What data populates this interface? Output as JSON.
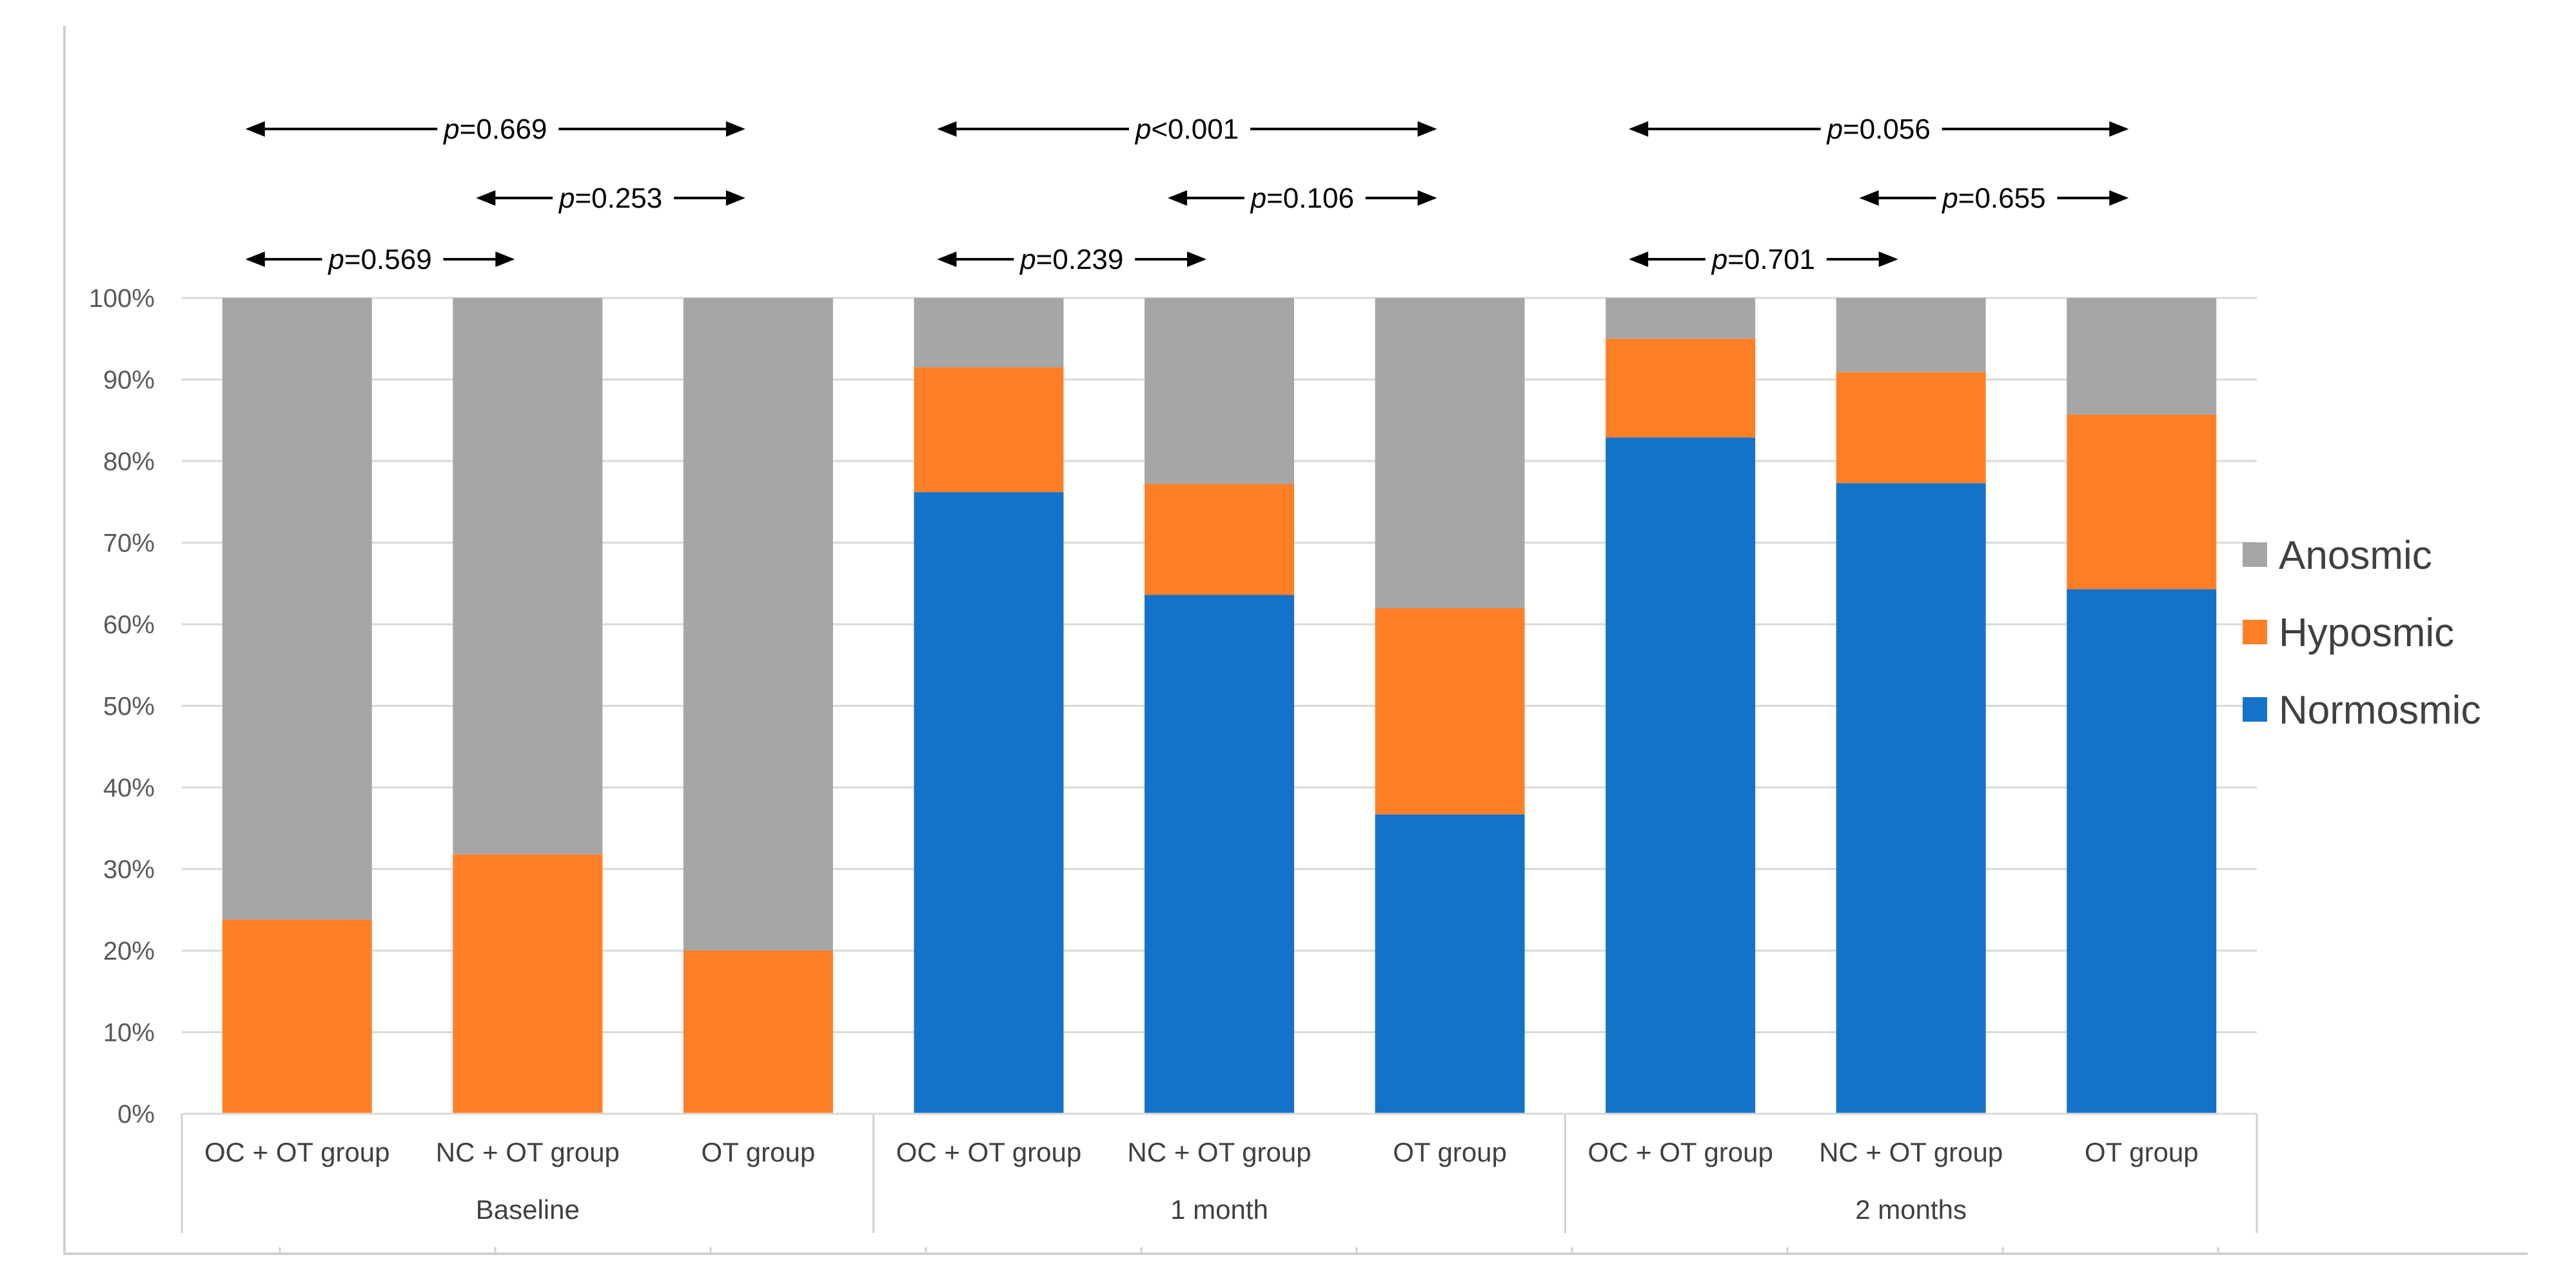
{
  "chart_data": {
    "type": "bar",
    "stacked": true,
    "percent": true,
    "ylim": [
      0,
      100
    ],
    "yticks": [
      "0%",
      "10%",
      "20%",
      "30%",
      "40%",
      "50%",
      "60%",
      "70%",
      "80%",
      "90%",
      "100%"
    ],
    "time_groups": [
      "Baseline",
      "1 month",
      "2 months"
    ],
    "categories": [
      "OC + OT group",
      "NC + OT group",
      "OT group",
      "OC + OT group",
      "NC + OT group",
      "OT group",
      "OC + OT group",
      "NC + OT group",
      "OT group"
    ],
    "series": [
      {
        "name": "Normosmic",
        "color": "#1572C9",
        "values": [
          0,
          0,
          0,
          76.2,
          63.6,
          36.7,
          82.9,
          77.3,
          64.3
        ]
      },
      {
        "name": "Hyposmic",
        "color": "#FF7F27",
        "values": [
          23.8,
          31.8,
          20.0,
          15.3,
          13.6,
          25.3,
          12.1,
          13.6,
          21.4
        ]
      },
      {
        "name": "Anosmic",
        "color": "#A6A6A6",
        "values": [
          76.2,
          68.2,
          80.0,
          8.5,
          22.8,
          38.0,
          5.0,
          9.1,
          14.3
        ]
      }
    ],
    "legend_order": [
      "Anosmic",
      "Hyposmic",
      "Normosmic"
    ],
    "legend_position": "right",
    "comparisons": [
      {
        "group": "Baseline",
        "from": 0,
        "to": 2,
        "level": "top",
        "label_prefix": "p",
        "label_value": "=0.669"
      },
      {
        "group": "Baseline",
        "from": 1,
        "to": 2,
        "level": "middle",
        "label_prefix": "p",
        "label_value": "=0.253"
      },
      {
        "group": "Baseline",
        "from": 0,
        "to": 1,
        "level": "bottom",
        "label_prefix": "p",
        "label_value": "=0.569"
      },
      {
        "group": "1 month",
        "from": 3,
        "to": 5,
        "level": "top",
        "label_prefix": "p",
        "label_value": "<0.001"
      },
      {
        "group": "1 month",
        "from": 4,
        "to": 5,
        "level": "middle",
        "label_prefix": "p",
        "label_value": "=0.106"
      },
      {
        "group": "1 month",
        "from": 3,
        "to": 4,
        "level": "bottom",
        "label_prefix": "p",
        "label_value": "=0.239"
      },
      {
        "group": "2 months",
        "from": 6,
        "to": 8,
        "level": "top",
        "label_prefix": "p",
        "label_value": "=0.056"
      },
      {
        "group": "2 months",
        "from": 7,
        "to": 8,
        "level": "middle",
        "label_prefix": "p",
        "label_value": "=0.655"
      },
      {
        "group": "2 months",
        "from": 6,
        "to": 7,
        "level": "bottom",
        "label_prefix": "p",
        "label_value": "=0.701"
      }
    ],
    "title": "",
    "xlabel": "",
    "ylabel": "",
    "grid": true
  }
}
